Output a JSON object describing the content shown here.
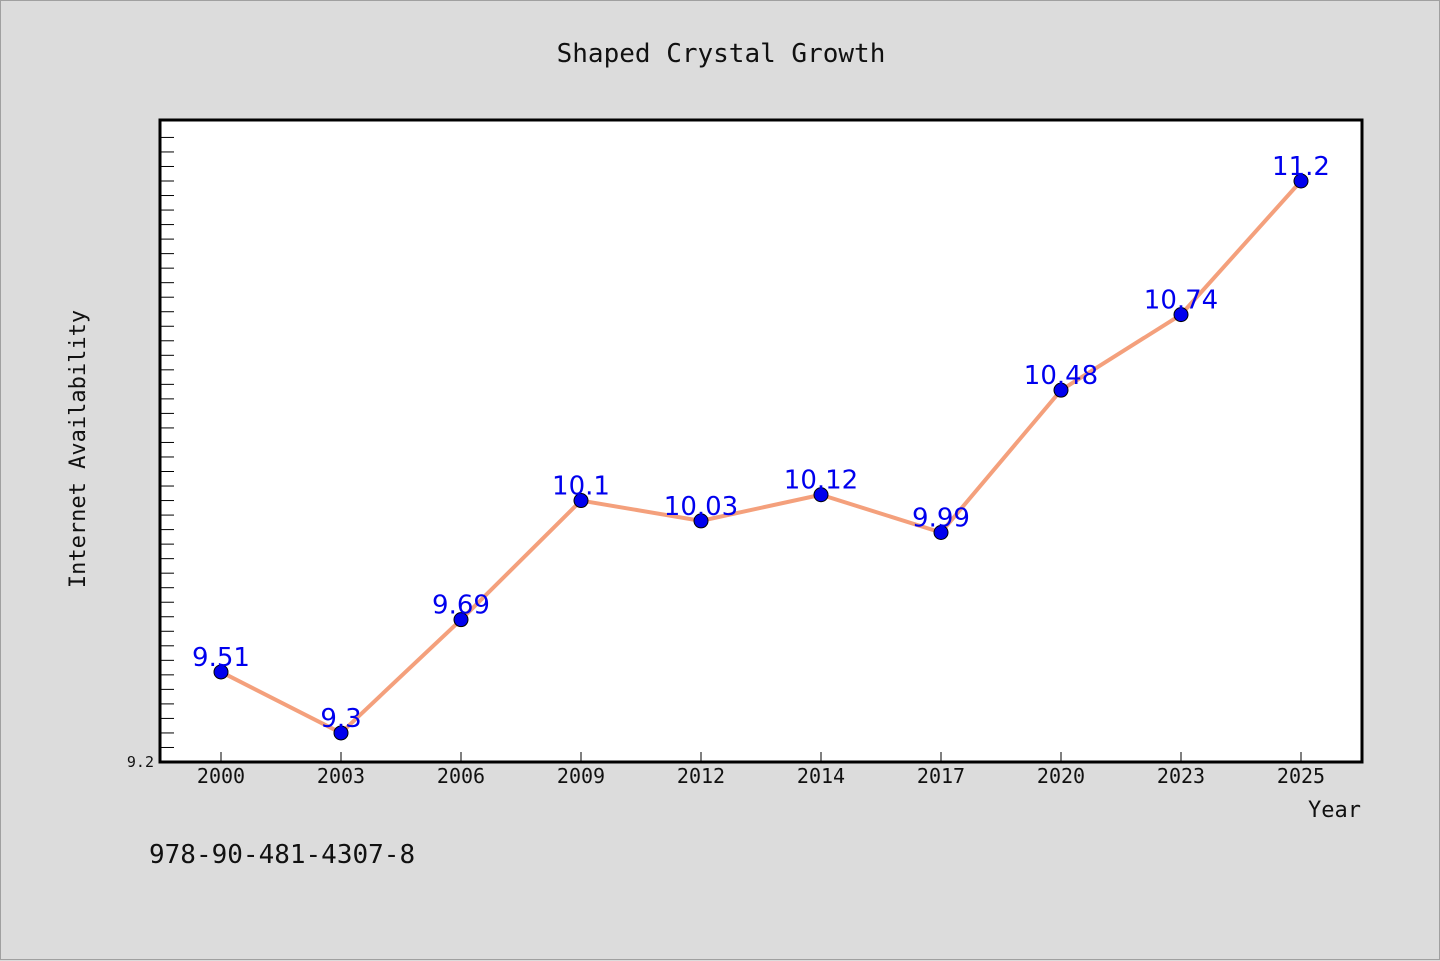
{
  "chart_data": {
    "type": "line",
    "title": "Shaped Crystal Growth",
    "xlabel": "Year",
    "ylabel": "Internet Availability",
    "categories": [
      "2000",
      "2003",
      "2006",
      "2009",
      "2012",
      "2014",
      "2017",
      "2020",
      "2023",
      "2025"
    ],
    "series": [
      {
        "values": [
          9.51,
          9.3,
          9.69,
          10.1,
          10.03,
          10.12,
          9.99,
          10.48,
          10.74,
          11.2
        ],
        "data_labels": [
          "9.51",
          "9.3",
          "9.69",
          "10.1",
          "10.03",
          "10.12",
          "9.99",
          "10.48",
          "10.74",
          "11.2"
        ]
      }
    ],
    "ylim": [
      9.2,
      11.41
    ],
    "y_tick_label": "9.2",
    "grid": false,
    "colors": {
      "line": "#f4a07c",
      "marker": "#0000ee",
      "data_label": "#0000ee",
      "plot_background": "#ffffff",
      "page_background": "#dcdcdc"
    }
  },
  "footer": {
    "isbn": "978-90-481-4307-8"
  }
}
